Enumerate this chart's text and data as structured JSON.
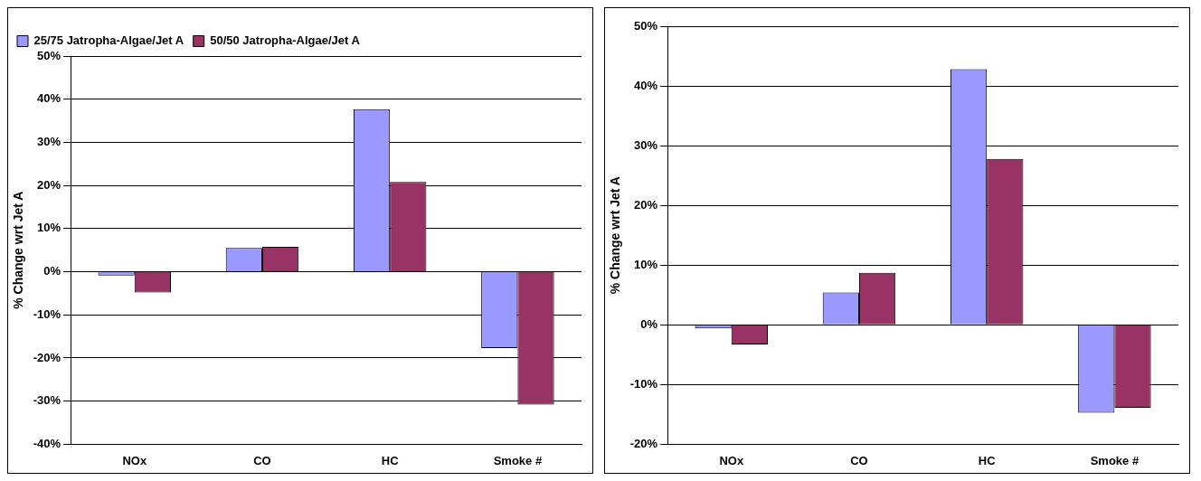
{
  "chart_data": [
    {
      "type": "bar",
      "ylabel": "% Change wrt Jet A",
      "categories": [
        "NOx",
        "CO",
        "HC",
        "Smoke #"
      ],
      "series": [
        {
          "name": "25/75 Jatropha-Algae/Jet A",
          "color": "#9999ff",
          "values": [
            -0.9,
            5.5,
            37.7,
            -17.7
          ]
        },
        {
          "name": "50/50 Jatropha-Algae/Jet A",
          "color": "#993366",
          "values": [
            -4.8,
            5.8,
            20.8,
            -30.8
          ]
        }
      ],
      "ylim": [
        -40,
        50
      ],
      "yticks": [
        {
          "value": -40,
          "label": "-40%"
        },
        {
          "value": -30,
          "label": "-30%"
        },
        {
          "value": -20,
          "label": "-20%"
        },
        {
          "value": -10,
          "label": "-10%"
        },
        {
          "value": 0,
          "label": "0%"
        },
        {
          "value": 10,
          "label": "10%"
        },
        {
          "value": 20,
          "label": "20%"
        },
        {
          "value": 30,
          "label": "30%"
        },
        {
          "value": 40,
          "label": "40%"
        },
        {
          "value": 50,
          "label": "50%"
        }
      ],
      "grid": "y",
      "legend": "top left"
    },
    {
      "type": "bar",
      "ylabel": "% Change wrt Jet A",
      "categories": [
        "NOx",
        "CO",
        "HC",
        "Smoke #"
      ],
      "series": [
        {
          "color": "#9999ff",
          "values": [
            -0.6,
            5.4,
            42.8,
            -14.7
          ]
        },
        {
          "color": "#993366",
          "values": [
            -3.3,
            8.7,
            27.8,
            -13.9
          ]
        }
      ],
      "ylim": [
        -20,
        50
      ],
      "yticks": [
        {
          "value": -20,
          "label": "-20%"
        },
        {
          "value": -10,
          "label": "-10%"
        },
        {
          "value": 0,
          "label": "0%"
        },
        {
          "value": 10,
          "label": "10%"
        },
        {
          "value": 20,
          "label": "20%"
        },
        {
          "value": 30,
          "label": "30%"
        },
        {
          "value": 40,
          "label": "40%"
        },
        {
          "value": 50,
          "label": "50%"
        }
      ],
      "grid": "y"
    }
  ]
}
